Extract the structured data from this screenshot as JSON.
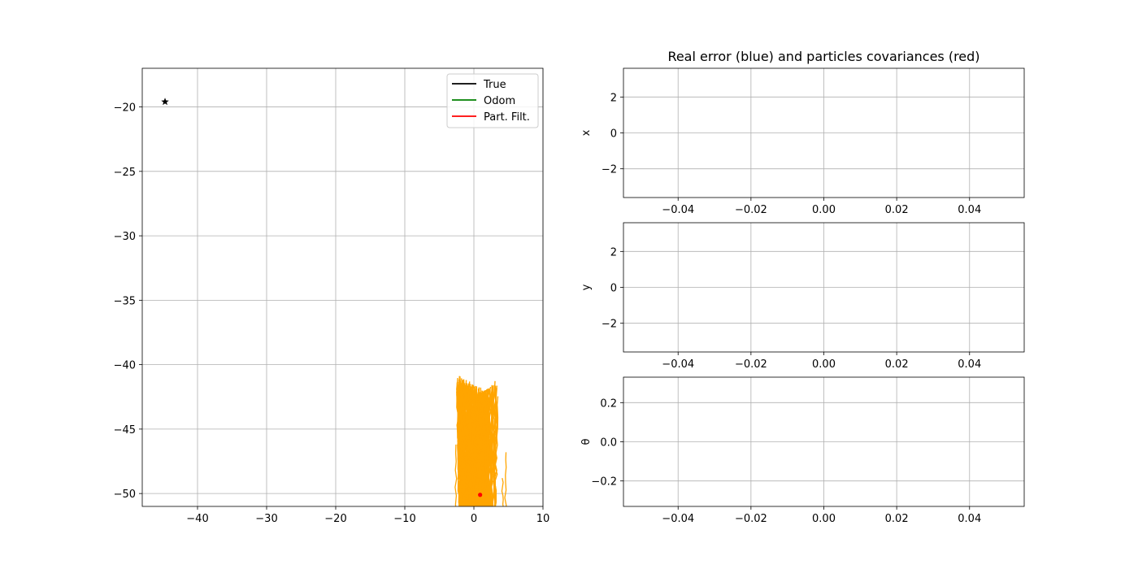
{
  "chart_data": [
    {
      "type": "line",
      "title": "",
      "xlabel": "",
      "ylabel": "",
      "xlim": [
        -48,
        10
      ],
      "ylim": [
        -51,
        -17
      ],
      "xticks": [
        -40,
        -30,
        -20,
        -10,
        0,
        10
      ],
      "yticks": [
        -20,
        -25,
        -30,
        -35,
        -40,
        -45,
        -50
      ],
      "xtick_labels": [
        "−40",
        "−30",
        "−20",
        "−10",
        "0",
        "10"
      ],
      "ytick_labels": [
        "−20",
        "−25",
        "−30",
        "−35",
        "−40",
        "−45",
        "−50"
      ],
      "grid": true,
      "legend_position": "upper right",
      "series": [
        {
          "name": "True",
          "color": "#000000",
          "values": []
        },
        {
          "name": "Odom",
          "color": "#008000",
          "values": []
        },
        {
          "name": "Part. Filt.",
          "color": "#ff0000",
          "values": []
        }
      ],
      "landmark": {
        "x": -44.7,
        "y": -19.6,
        "marker": "star",
        "color": "#000000"
      },
      "particle_cloud": {
        "color": "#ffa500",
        "x_range": [
          -2.5,
          4.7
        ],
        "y_range": [
          -51,
          -42.5
        ],
        "center": [
          1.0,
          -50.1
        ]
      },
      "estimate_point": {
        "x": 0.9,
        "y": -50.1,
        "color": "#ff0000"
      }
    },
    {
      "type": "line",
      "title": "Real error (blue) and particles covariances (red)",
      "ylabel": "x",
      "xlim": [
        -0.055,
        0.055
      ],
      "ylim": [
        -3.6,
        3.6
      ],
      "xticks": [
        -0.04,
        -0.02,
        0.0,
        0.02,
        0.04
      ],
      "yticks": [
        2,
        0,
        -2
      ],
      "xtick_labels": [
        "−0.04",
        "−0.02",
        "0.00",
        "0.02",
        "0.04"
      ],
      "ytick_labels": [
        "2",
        "0",
        "−2"
      ],
      "grid": true,
      "series": [
        {
          "color": "#0000ff",
          "values": []
        },
        {
          "color": "#ff0000",
          "values": []
        }
      ]
    },
    {
      "type": "line",
      "title": "",
      "ylabel": "y",
      "xlim": [
        -0.055,
        0.055
      ],
      "ylim": [
        -3.6,
        3.6
      ],
      "xticks": [
        -0.04,
        -0.02,
        0.0,
        0.02,
        0.04
      ],
      "yticks": [
        2,
        0,
        -2
      ],
      "xtick_labels": [
        "−0.04",
        "−0.02",
        "0.00",
        "0.02",
        "0.04"
      ],
      "ytick_labels": [
        "2",
        "0",
        "−2"
      ],
      "grid": true,
      "series": [
        {
          "color": "#0000ff",
          "values": []
        },
        {
          "color": "#ff0000",
          "values": []
        }
      ]
    },
    {
      "type": "line",
      "title": "",
      "ylabel": "θ",
      "xlim": [
        -0.055,
        0.055
      ],
      "ylim": [
        -0.33,
        0.33
      ],
      "xticks": [
        -0.04,
        -0.02,
        0.0,
        0.02,
        0.04
      ],
      "yticks": [
        0.2,
        0.0,
        -0.2
      ],
      "xtick_labels": [
        "−0.04",
        "−0.02",
        "0.00",
        "0.02",
        "0.04"
      ],
      "ytick_labels": [
        "0.2",
        "0.0",
        "−0.2"
      ],
      "grid": true,
      "series": [
        {
          "color": "#0000ff",
          "values": []
        },
        {
          "color": "#ff0000",
          "values": []
        }
      ]
    }
  ]
}
